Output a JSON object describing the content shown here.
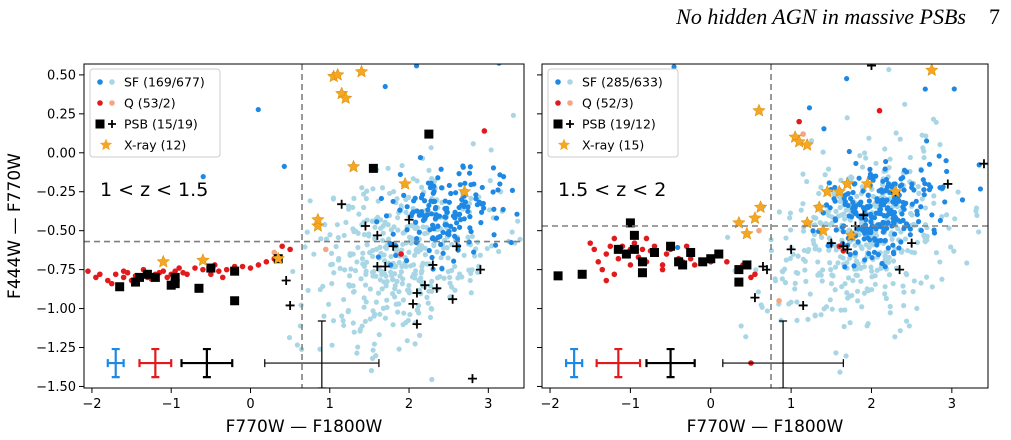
{
  "header": {
    "title": "No hidden AGN in massive PSBs",
    "page": "7"
  },
  "colors": {
    "sf_dark": "#1e88e5",
    "sf_light": "#a9d6e5",
    "q_red": "#e31a1c",
    "q_light": "#f4a582",
    "psb": "#000000",
    "xray": "#f5a623",
    "dashed": "#808080"
  },
  "chart_data": [
    {
      "type": "scatter",
      "id": "left",
      "xlabel": "F770W — F1800W",
      "ylabel": "F444W — F770W",
      "xlim": [
        -2.1,
        3.45
      ],
      "ylim": [
        -1.51,
        0.57
      ],
      "xticks": [
        -2,
        -1,
        0,
        1,
        2,
        3
      ],
      "yticks": [
        -1.5,
        -1.25,
        -1.0,
        -0.75,
        -0.5,
        -0.25,
        0.0,
        0.25,
        0.5
      ],
      "ytick_labels": [
        "−1.50",
        "−1.25",
        "−1.00",
        "−0.75",
        "−0.50",
        "−0.25",
        "0.00",
        "0.25",
        "0.50"
      ],
      "xtick_labels": [
        "−2",
        "−1",
        "0",
        "1",
        "2",
        "3"
      ],
      "annotation": "1 < z < 1.5",
      "vline": 0.65,
      "hline": -0.57,
      "legend": [
        {
          "label": "SF (169/677)",
          "marker": "dots-blue"
        },
        {
          "label": "Q (53/2)",
          "marker": "dots-red"
        },
        {
          "label": "PSB (15/19)",
          "marker": "square-plus"
        },
        {
          "label": "X-ray (12)",
          "marker": "star"
        }
      ],
      "errorbars": [
        {
          "x": -1.7,
          "y": -1.35,
          "xerr": 0.1,
          "yerr": 0.09,
          "color": "#1e88e5"
        },
        {
          "x": -1.2,
          "y": -1.35,
          "xerr": 0.2,
          "yerr": 0.09,
          "color": "#e31a1c"
        },
        {
          "x": -0.55,
          "y": -1.35,
          "xerr": 0.32,
          "yerr": 0.09,
          "color": "#000000"
        },
        {
          "x": 0.9,
          "y": -1.35,
          "xerr_lo": 0.72,
          "xerr_hi": 0.72,
          "yerr_up": 0.27,
          "yerr_down": 0.16,
          "color": "#000000",
          "thin": true
        }
      ],
      "sf_light_pts": 420,
      "sf_dark_pts": 150,
      "series": {
        "sf_light_center": [
          1.9,
          -0.65
        ],
        "sf_dark_center": [
          2.5,
          -0.4
        ],
        "q": [
          [
            -2.05,
            -0.76
          ],
          [
            -1.95,
            -0.8
          ],
          [
            -1.9,
            -0.78
          ],
          [
            -1.8,
            -0.82
          ],
          [
            -1.7,
            -0.78
          ],
          [
            -1.6,
            -0.8
          ],
          [
            -1.55,
            -0.77
          ],
          [
            -1.5,
            -0.82
          ],
          [
            -1.45,
            -0.79
          ],
          [
            -1.4,
            -0.8
          ],
          [
            -1.35,
            -0.75
          ],
          [
            -1.3,
            -0.8
          ],
          [
            -1.25,
            -0.81
          ],
          [
            -1.2,
            -0.78
          ],
          [
            -1.15,
            -0.77
          ],
          [
            -1.1,
            -0.76
          ],
          [
            -1.05,
            -0.8
          ],
          [
            -1.0,
            -0.78
          ],
          [
            -0.95,
            -0.76
          ],
          [
            -0.9,
            -0.74
          ],
          [
            -0.85,
            -0.77
          ],
          [
            -0.8,
            -0.78
          ],
          [
            -0.7,
            -0.74
          ],
          [
            -0.6,
            -0.75
          ],
          [
            -0.5,
            -0.78
          ],
          [
            -0.4,
            -0.76
          ],
          [
            -0.3,
            -0.75
          ],
          [
            -0.2,
            -0.73
          ],
          [
            -0.1,
            -0.73
          ],
          [
            0.0,
            -0.74
          ],
          [
            0.1,
            -0.72
          ],
          [
            0.2,
            -0.7
          ],
          [
            0.3,
            -0.68
          ],
          [
            -1.6,
            -0.76
          ],
          [
            -1.75,
            -0.84
          ],
          [
            -0.45,
            -0.72
          ],
          [
            -0.35,
            -0.8
          ],
          [
            0.4,
            -0.6
          ],
          [
            0.5,
            -0.62
          ],
          [
            1.9,
            -0.65
          ],
          [
            2.95,
            0.14
          ]
        ],
        "q_light": [
          [
            0.3,
            -0.64
          ],
          [
            0.95,
            -0.62
          ]
        ],
        "psb_sq": [
          [
            -1.65,
            -0.86
          ],
          [
            -1.4,
            -0.8
          ],
          [
            -1.3,
            -0.78
          ],
          [
            -1.2,
            -0.8
          ],
          [
            -1.0,
            -0.85
          ],
          [
            -0.95,
            -0.84
          ],
          [
            -0.65,
            -0.87
          ],
          [
            -0.5,
            -0.74
          ],
          [
            -0.2,
            -0.95
          ],
          [
            -0.2,
            -0.76
          ],
          [
            0.35,
            -0.68
          ],
          [
            1.55,
            -0.1
          ],
          [
            2.25,
            0.12
          ],
          [
            -0.95,
            -0.8
          ],
          [
            -1.45,
            -0.83
          ]
        ],
        "psb_plus": [
          [
            0.45,
            -0.82
          ],
          [
            0.5,
            -0.98
          ],
          [
            1.15,
            -0.33
          ],
          [
            1.45,
            -0.47
          ],
          [
            1.6,
            -0.53
          ],
          [
            1.6,
            -0.73
          ],
          [
            1.7,
            -0.73
          ],
          [
            1.8,
            -0.6
          ],
          [
            2.0,
            -0.43
          ],
          [
            2.1,
            -0.9
          ],
          [
            2.2,
            -0.85
          ],
          [
            2.05,
            -0.97
          ],
          [
            2.1,
            -1.1
          ],
          [
            2.3,
            -0.72
          ],
          [
            2.35,
            -0.87
          ],
          [
            2.55,
            -0.94
          ],
          [
            2.9,
            -0.75
          ],
          [
            2.6,
            -0.6
          ],
          [
            2.8,
            -1.45
          ]
        ],
        "xray": [
          [
            0.35,
            -0.68
          ],
          [
            0.85,
            -0.47
          ],
          [
            0.85,
            -0.43
          ],
          [
            1.05,
            0.49
          ],
          [
            1.1,
            0.5
          ],
          [
            1.15,
            0.38
          ],
          [
            1.2,
            0.35
          ],
          [
            1.4,
            0.52
          ],
          [
            1.3,
            -0.09
          ],
          [
            1.95,
            -0.2
          ],
          [
            2.7,
            -0.25
          ],
          [
            -1.1,
            -0.7
          ],
          [
            -0.6,
            -0.69
          ]
        ]
      }
    },
    {
      "type": "scatter",
      "id": "right",
      "xlabel": "F770W — F1800W",
      "ylabel": "",
      "xlim": [
        -2.1,
        3.45
      ],
      "ylim": [
        -1.51,
        0.57
      ],
      "xticks": [
        -2,
        -1,
        0,
        1,
        2,
        3
      ],
      "xtick_labels": [
        "−2",
        "−1",
        "0",
        "1",
        "2",
        "3"
      ],
      "annotation": "1.5 < z < 2",
      "vline": 0.75,
      "hline": -0.47,
      "legend": [
        {
          "label": "SF (285/633)",
          "marker": "dots-blue"
        },
        {
          "label": "Q (52/3)",
          "marker": "dots-red"
        },
        {
          "label": "PSB (19/12)",
          "marker": "square-plus"
        },
        {
          "label": "X-ray (15)",
          "marker": "star"
        }
      ],
      "errorbars": [
        {
          "x": -1.7,
          "y": -1.35,
          "xerr": 0.1,
          "yerr": 0.09,
          "color": "#1e88e5"
        },
        {
          "x": -1.15,
          "y": -1.35,
          "xerr": 0.27,
          "yerr": 0.09,
          "color": "#e31a1c"
        },
        {
          "x": -0.5,
          "y": -1.35,
          "xerr": 0.3,
          "yerr": 0.09,
          "color": "#000000"
        },
        {
          "x": 0.9,
          "y": -1.35,
          "xerr_lo": 0.75,
          "xerr_hi": 0.75,
          "yerr_up": 0.27,
          "yerr_down": 0.16,
          "color": "#000000",
          "thin": true
        }
      ],
      "sf_light_pts": 420,
      "sf_dark_pts": 240,
      "series": {
        "sf_light_center": [
          1.8,
          -0.55
        ],
        "sf_dark_center": [
          2.1,
          -0.4
        ],
        "q": [
          [
            -1.5,
            -0.58
          ],
          [
            -1.45,
            -0.62
          ],
          [
            -1.4,
            -0.7
          ],
          [
            -1.35,
            -0.75
          ],
          [
            -1.3,
            -0.65
          ],
          [
            -1.25,
            -0.6
          ],
          [
            -1.2,
            -0.55
          ],
          [
            -1.15,
            -0.68
          ],
          [
            -1.1,
            -0.6
          ],
          [
            -1.0,
            -0.62
          ],
          [
            -1.0,
            -0.72
          ],
          [
            -0.95,
            -0.58
          ],
          [
            -0.9,
            -0.67
          ],
          [
            -0.85,
            -0.62
          ],
          [
            -0.8,
            -0.7
          ],
          [
            -0.75,
            -0.63
          ],
          [
            -0.7,
            -0.6
          ],
          [
            -0.6,
            -0.72
          ],
          [
            -0.55,
            -0.65
          ],
          [
            -0.5,
            -0.62
          ],
          [
            -0.4,
            -0.68
          ],
          [
            -0.35,
            -0.7
          ],
          [
            -0.25,
            -0.68
          ],
          [
            -0.2,
            -0.72
          ],
          [
            -0.1,
            -0.7
          ],
          [
            0.0,
            -0.7
          ],
          [
            0.1,
            -0.65
          ],
          [
            0.2,
            -0.7
          ],
          [
            0.4,
            -0.72
          ],
          [
            0.5,
            -0.8
          ],
          [
            0.55,
            -0.78
          ],
          [
            1.1,
            0.2
          ],
          [
            1.6,
            -0.6
          ],
          [
            1.65,
            -0.63
          ],
          [
            2.1,
            0.27
          ],
          [
            -0.8,
            -0.55
          ],
          [
            -1.2,
            -0.78
          ],
          [
            -1.3,
            -0.82
          ],
          [
            0.5,
            -1.35
          ],
          [
            -0.6,
            -0.75
          ],
          [
            -0.3,
            -0.6
          ]
        ],
        "q_light": [
          [
            0.6,
            -0.5
          ],
          [
            1.15,
            0.12
          ],
          [
            0.85,
            -0.95
          ]
        ],
        "psb_sq": [
          [
            -1.9,
            -0.79
          ],
          [
            -1.6,
            -0.78
          ],
          [
            -1.15,
            -0.62
          ],
          [
            -1.05,
            -0.65
          ],
          [
            -1.0,
            -0.45
          ],
          [
            -0.95,
            -0.53
          ],
          [
            -0.95,
            -0.62
          ],
          [
            -0.85,
            -0.7
          ],
          [
            -0.7,
            -0.64
          ],
          [
            -0.5,
            -0.6
          ],
          [
            -0.4,
            -0.7
          ],
          [
            -0.35,
            -0.72
          ],
          [
            -0.25,
            -0.64
          ],
          [
            -0.1,
            -0.7
          ],
          [
            0.0,
            -0.68
          ],
          [
            0.1,
            -0.65
          ],
          [
            0.35,
            -0.75
          ],
          [
            0.45,
            -0.72
          ],
          [
            0.35,
            -0.83
          ],
          [
            -0.85,
            -0.77
          ]
        ],
        "psb_plus": [
          [
            0.55,
            -0.93
          ],
          [
            0.65,
            -0.73
          ],
          [
            0.7,
            -0.75
          ],
          [
            1.0,
            -0.62
          ],
          [
            1.15,
            -0.98
          ],
          [
            1.5,
            -0.58
          ],
          [
            1.65,
            -0.6
          ],
          [
            1.8,
            -0.47
          ],
          [
            1.9,
            -0.4
          ],
          [
            2.0,
            0.56
          ],
          [
            2.3,
            -0.25
          ],
          [
            2.35,
            -0.75
          ],
          [
            2.5,
            -0.58
          ],
          [
            2.95,
            -0.2
          ],
          [
            3.4,
            -0.07
          ],
          [
            1.7,
            -0.62
          ]
        ],
        "xray": [
          [
            0.35,
            -0.45
          ],
          [
            0.45,
            -0.52
          ],
          [
            0.55,
            -0.42
          ],
          [
            0.62,
            -0.35
          ],
          [
            0.6,
            0.27
          ],
          [
            1.05,
            0.1
          ],
          [
            1.1,
            0.07
          ],
          [
            1.2,
            0.05
          ],
          [
            1.2,
            -0.45
          ],
          [
            1.35,
            -0.35
          ],
          [
            1.45,
            -0.25
          ],
          [
            1.6,
            -0.25
          ],
          [
            1.7,
            -0.2
          ],
          [
            1.95,
            -0.2
          ],
          [
            2.3,
            -0.25
          ],
          [
            2.75,
            0.53
          ],
          [
            1.4,
            -0.5
          ],
          [
            1.75,
            -0.53
          ]
        ]
      }
    }
  ]
}
